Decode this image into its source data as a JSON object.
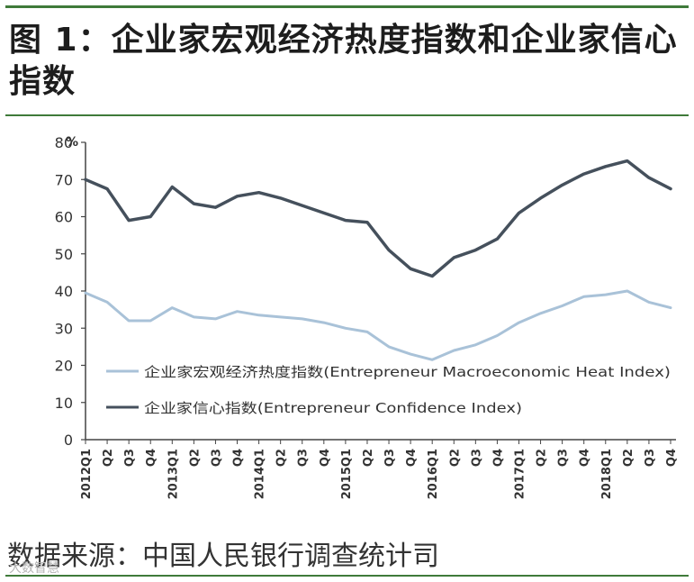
{
  "title": "图 1：企业家宏观经济热度指数和企业家信心指数",
  "source": "数据来源：中国人民银行调查统计司",
  "watermark": "大数智慧",
  "chart_data": {
    "type": "line",
    "title": "图 1：企业家宏观经济热度指数和企业家信心指数",
    "ylabel": "%",
    "ylim": [
      0,
      80
    ],
    "yticks": [
      0,
      10,
      20,
      30,
      40,
      50,
      60,
      70,
      80
    ],
    "categories": [
      "2012Q1",
      "Q2",
      "Q3",
      "Q4",
      "2013Q1",
      "Q2",
      "Q3",
      "Q4",
      "2014Q1",
      "Q2",
      "Q3",
      "Q4",
      "2015Q1",
      "Q2",
      "Q3",
      "Q4",
      "2016Q1",
      "Q2",
      "Q3",
      "Q4",
      "2017Q1",
      "Q2",
      "Q3",
      "Q4",
      "2018Q1",
      "Q2",
      "Q3",
      "Q4"
    ],
    "legend_position": "center-left",
    "series": [
      {
        "name": "企业家宏观经济热度指数(Entrepreneur Macroeconomic Heat Index)",
        "color": "#a9c2d8",
        "values": [
          39.5,
          37,
          32,
          32,
          35.5,
          33,
          32.5,
          34.5,
          33.5,
          33,
          32.5,
          31.5,
          30,
          29,
          25,
          23,
          21.5,
          24,
          25.5,
          28,
          31.5,
          34,
          36,
          38.5,
          39,
          40,
          37,
          35.5
        ]
      },
      {
        "name": "企业家信心指数(Entrepreneur Confidence Index)",
        "color": "#45505c",
        "values": [
          70,
          67.5,
          59,
          60,
          68,
          63.5,
          62.5,
          65.5,
          66.5,
          65,
          63,
          61,
          59,
          58.5,
          51,
          46,
          44,
          49,
          51,
          54,
          61,
          65,
          68.5,
          71.5,
          73.5,
          75,
          70.5,
          67.5
        ]
      }
    ]
  }
}
